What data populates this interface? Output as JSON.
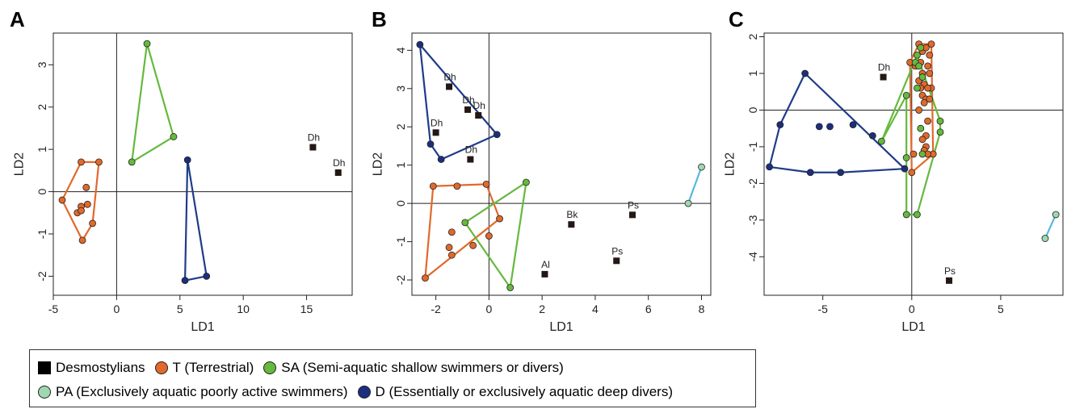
{
  "colors": {
    "T": "#e1692b",
    "SA": "#65b93d",
    "PA": "#9fd8b0",
    "D": "#1c2f7e",
    "D_line": "#1f3c88",
    "PA_line": "#5ab7df",
    "Desmostylians": "#231815"
  },
  "chart_data": [
    {
      "panel": "A",
      "type": "scatter",
      "xlabel": "LD1",
      "ylabel": "LD2",
      "xlim": [
        -5,
        18.6
      ],
      "ylim": [
        -2.45,
        3.75
      ],
      "xticks": [
        -5,
        0,
        5,
        10,
        15
      ],
      "yticks": [
        -2,
        -1,
        0,
        1,
        2,
        3
      ],
      "hull_points": {
        "T": [
          [
            -4.3,
            -0.2
          ],
          [
            -2.8,
            0.7
          ],
          [
            -1.4,
            0.7
          ],
          [
            -1.9,
            -0.75
          ],
          [
            -2.7,
            -1.15
          ]
        ],
        "SA": [
          [
            2.4,
            3.5
          ],
          [
            4.5,
            1.3
          ],
          [
            1.2,
            0.7
          ]
        ],
        "D": [
          [
            5.6,
            0.75
          ],
          [
            7.1,
            -2.0
          ],
          [
            5.4,
            -2.1
          ]
        ],
        "PA": []
      },
      "inner_points": {
        "T": [
          [
            -2.4,
            0.1
          ],
          [
            -3.1,
            -0.5
          ],
          [
            -2.8,
            -0.35
          ],
          [
            -2.8,
            -0.45
          ],
          [
            -2.3,
            -0.3
          ]
        ],
        "SA": [],
        "D": [],
        "PA": []
      },
      "desmostylians": [
        {
          "label": "Dh",
          "x": 15.5,
          "y": 1.05
        },
        {
          "label": "Dh",
          "x": 17.5,
          "y": 0.45
        }
      ]
    },
    {
      "panel": "B",
      "type": "scatter",
      "xlabel": "LD1",
      "ylabel": "LD2",
      "xlim": [
        -2.9,
        8.35
      ],
      "ylim": [
        -2.4,
        4.45
      ],
      "xticks": [
        -2,
        0,
        2,
        4,
        6,
        8
      ],
      "yticks": [
        -2,
        -1,
        0,
        1,
        2,
        3,
        4
      ],
      "hull_points": {
        "T": [
          [
            -2.1,
            0.45
          ],
          [
            -0.1,
            0.5
          ],
          [
            0.4,
            -0.4
          ],
          [
            -2.4,
            -1.95
          ]
        ],
        "SA": [
          [
            1.4,
            0.55
          ],
          [
            0.8,
            -2.2
          ],
          [
            -0.9,
            -0.5
          ]
        ],
        "D": [
          [
            -2.6,
            4.15
          ],
          [
            0.3,
            1.8
          ],
          [
            -1.8,
            1.15
          ],
          [
            -2.2,
            1.55
          ]
        ],
        "PA": [
          [
            8.0,
            0.95
          ],
          [
            7.5,
            0.0
          ]
        ]
      },
      "inner_points": {
        "T": [
          [
            -1.2,
            0.45
          ],
          [
            -1.4,
            -0.75
          ],
          [
            -1.4,
            -1.35
          ],
          [
            -1.5,
            -1.15
          ],
          [
            -0.6,
            -1.1
          ],
          [
            0.0,
            -0.85
          ]
        ],
        "SA": [],
        "D": [],
        "PA": []
      },
      "desmostylians": [
        {
          "label": "Dh",
          "x": -1.5,
          "y": 3.05
        },
        {
          "label": "Dh",
          "x": -0.8,
          "y": 2.45
        },
        {
          "label": "Dh",
          "x": -0.4,
          "y": 2.3
        },
        {
          "label": "Dh",
          "x": -2.0,
          "y": 1.85
        },
        {
          "label": "Dh",
          "x": -0.7,
          "y": 1.15
        },
        {
          "label": "Bk",
          "x": 3.1,
          "y": -0.55
        },
        {
          "label": "Ps",
          "x": 5.4,
          "y": -0.3
        },
        {
          "label": "Ps",
          "x": 4.8,
          "y": -1.5
        },
        {
          "label": "Al",
          "x": 2.1,
          "y": -1.85
        }
      ]
    },
    {
      "panel": "C",
      "type": "scatter",
      "xlabel": "LD1",
      "ylabel": "LD2",
      "xlim": [
        -8.3,
        8.5
      ],
      "ylim": [
        -5.05,
        2.1
      ],
      "xticks": [
        -5,
        0,
        5
      ],
      "yticks": [
        -4,
        -3,
        -2,
        -1,
        0,
        1,
        2
      ],
      "hull_points": {
        "T": [
          [
            0.4,
            1.8
          ],
          [
            1.1,
            1.8
          ],
          [
            1.2,
            -1.2
          ],
          [
            0.0,
            -1.7
          ],
          [
            -0.1,
            1.3
          ]
        ],
        "SA": [
          [
            0.3,
            1.5
          ],
          [
            1.6,
            -0.3
          ],
          [
            1.6,
            -0.6
          ],
          [
            0.3,
            -2.85
          ],
          [
            -0.3,
            -2.85
          ],
          [
            -0.3,
            -1.3
          ],
          [
            -0.3,
            0.4
          ],
          [
            -1.7,
            -0.85
          ]
        ],
        "D": [
          [
            -6.0,
            1.0
          ],
          [
            -0.4,
            -1.6
          ],
          [
            -4.0,
            -1.7
          ],
          [
            -5.7,
            -1.7
          ],
          [
            -8.0,
            -1.55
          ],
          [
            -7.4,
            -0.4
          ]
        ],
        "PA": [
          [
            8.1,
            -2.85
          ],
          [
            7.5,
            -3.5
          ]
        ]
      },
      "inner_points": {
        "T": [
          [
            0.6,
            1.6
          ],
          [
            0.8,
            1.7
          ],
          [
            1.0,
            1.5
          ],
          [
            0.5,
            1.3
          ],
          [
            0.9,
            1.2
          ],
          [
            0.2,
            1.2
          ],
          [
            0.6,
            1.0
          ],
          [
            1.0,
            1.0
          ],
          [
            0.4,
            0.8
          ],
          [
            0.7,
            0.7
          ],
          [
            1.1,
            0.6
          ],
          [
            0.9,
            0.6
          ],
          [
            0.5,
            0.6
          ],
          [
            0.6,
            0.4
          ],
          [
            0.8,
            0.3
          ],
          [
            1.0,
            0.3
          ],
          [
            0.7,
            0.2
          ],
          [
            0.9,
            -0.3
          ],
          [
            0.4,
            0.0
          ],
          [
            0.8,
            -0.7
          ],
          [
            0.6,
            -0.8
          ],
          [
            0.8,
            -1.0
          ],
          [
            0.7,
            -1.1
          ],
          [
            0.9,
            -1.2
          ],
          [
            0.1,
            -1.2
          ]
        ],
        "SA": [
          [
            0.5,
            1.7
          ],
          [
            0.2,
            1.3
          ],
          [
            0.4,
            1.2
          ],
          [
            0.6,
            0.9
          ],
          [
            0.3,
            0.6
          ],
          [
            0.5,
            -0.5
          ],
          [
            0.6,
            -1.2
          ]
        ],
        "D": [
          [
            -5.2,
            -0.45
          ],
          [
            -4.6,
            -0.45
          ],
          [
            -3.3,
            -0.4
          ],
          [
            -2.2,
            -0.7
          ]
        ],
        "PA": []
      },
      "desmostylians": [
        {
          "label": "Dh",
          "x": -1.6,
          "y": 0.9
        },
        {
          "label": "Ps",
          "x": 2.1,
          "y": -4.65
        }
      ]
    }
  ],
  "panels": {
    "A": {
      "letter": "A"
    },
    "B": {
      "letter": "B"
    },
    "C": {
      "letter": "C"
    }
  },
  "legend": {
    "desmostylians": "Desmostylians",
    "T": "T  (Terrestrial)",
    "SA": "SA  (Semi-aquatic shallow swimmers or divers)",
    "PA": "PA  (Exclusively aquatic poorly active swimmers)",
    "D": "D  (Essentially or exclusively aquatic deep divers)"
  }
}
